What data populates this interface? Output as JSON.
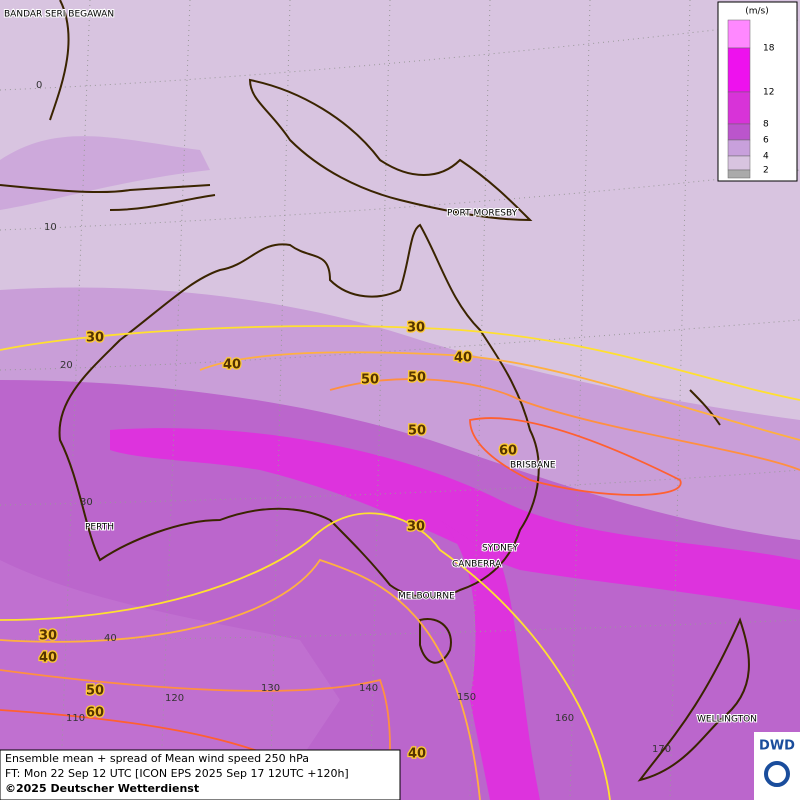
{
  "map": {
    "cities": [
      "BANDAR SERI BEGAWAN",
      "PORT MORESBY",
      "BRISBANE",
      "SYDNEY",
      "CANBERRA",
      "MELBOURNE",
      "PERTH",
      "WELLINGTON"
    ],
    "grid_labels": [
      "0",
      "10",
      "20",
      "30",
      "40",
      "110",
      "120",
      "130",
      "140",
      "150",
      "160",
      "170"
    ],
    "contour_labels": [
      30,
      30,
      30,
      30,
      40,
      40,
      40,
      40,
      50,
      50,
      50,
      50,
      60,
      60
    ],
    "legend": {
      "unit": "(m/s)",
      "ticks": [
        18,
        12,
        8,
        6,
        4,
        2
      ],
      "colors": [
        "#ff88ff",
        "#ee11ee",
        "#d833d8",
        "#bb55cc",
        "#c8a0dc",
        "#d8c4e0",
        "#aaaaaa"
      ]
    },
    "footer": [
      "Ensemble mean + spread of Mean wind speed 250 hPa",
      "FT: Mon 22 Sep 12 UTC [ICON EPS 2025 Sep 17 12UTC +120h]",
      "©2025 Deutscher Wetterdienst"
    ],
    "logo": "DWD"
  }
}
